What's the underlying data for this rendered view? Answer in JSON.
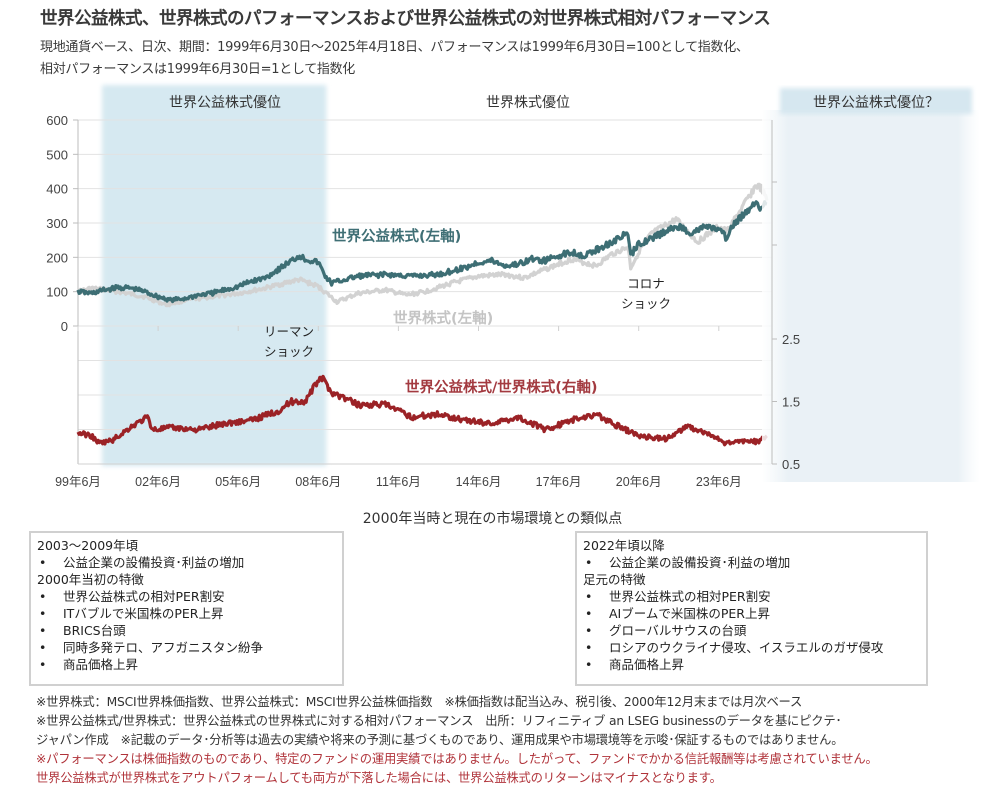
{
  "title": "世界公益株式、世界株式のパフォーマンスおよび世界公益株式の対世界株式相対パフォーマンス",
  "subtitle_line1": "現地通貨ベース、日次、期間：1999年6月30日～2025年4月18日、パフォーマンスは1999年6月30日=100として指数化、",
  "subtitle_line2": "相対パフォーマンスは1999年6月30日=1として指数化",
  "colors": {
    "utilities": "#3d6e74",
    "world": "#d2d2d2",
    "relative": "#9b2226",
    "shade": "#d6e9f1",
    "future_shade": "#e8f0f5",
    "label_utilities": "#3f6f75",
    "label_world": "#c4c4c4",
    "label_relative": "#a33a40"
  },
  "chart_data": {
    "type": "line",
    "title": "世界公益株式、世界株式のパフォーマンスおよび世界公益株式の対世界株式相対パフォーマンス",
    "xlabel": "",
    "x_ticks": [
      "99年6月",
      "02年6月",
      "05年6月",
      "08年6月",
      "11年6月",
      "14年6月",
      "17年6月",
      "20年6月",
      "23年6月"
    ],
    "x_tick_years": [
      1999.5,
      2002.5,
      2005.5,
      2008.5,
      2011.5,
      2014.5,
      2017.5,
      2020.5,
      2023.5
    ],
    "x_range": [
      1999.5,
      2025.3
    ],
    "left_axis": {
      "ticks": [
        0,
        100,
        200,
        300,
        400,
        500,
        600
      ],
      "range": [
        0,
        600
      ]
    },
    "right_axis": {
      "ticks": [
        0.5,
        1.5,
        2.5
      ],
      "range": [
        0.5,
        2.5
      ]
    },
    "grid": true,
    "regions": [
      {
        "label": "世界公益株式優位",
        "from": 2000.4,
        "to": 2008.8
      },
      {
        "label": "世界株式優位",
        "from": 2008.8,
        "to": 2025.3
      },
      {
        "label": "世界公益株式優位？",
        "from": 2025.3,
        "to": 2033.0
      }
    ],
    "annotations": [
      {
        "text": [
          "リーマン",
          "ショック"
        ],
        "x": 2008.2
      },
      {
        "text": [
          "コロナ",
          "ショック"
        ],
        "x": 2020.2
      }
    ],
    "series": [
      {
        "name": "世界公益株式(左軸)",
        "axis": "left",
        "x": [
          1999.5,
          2000.0,
          2000.5,
          2001.0,
          2001.5,
          2002.0,
          2002.5,
          2003.0,
          2003.5,
          2004.0,
          2004.5,
          2005.0,
          2005.5,
          2006.0,
          2006.5,
          2007.0,
          2007.5,
          2007.8,
          2008.0,
          2008.5,
          2008.8,
          2009.0,
          2009.5,
          2010.0,
          2011.0,
          2012.0,
          2013.0,
          2014.0,
          2014.5,
          2015.0,
          2015.5,
          2016.0,
          2016.5,
          2017.0,
          2017.5,
          2018.0,
          2018.5,
          2019.0,
          2019.5,
          2020.1,
          2020.2,
          2020.5,
          2021.0,
          2021.5,
          2022.0,
          2022.5,
          2023.0,
          2023.5,
          2023.8,
          2024.0,
          2024.5,
          2024.9,
          2025.0,
          2025.3
        ],
        "values": [
          100,
          95,
          105,
          112,
          110,
          100,
          85,
          75,
          80,
          90,
          95,
          105,
          115,
          130,
          140,
          165,
          190,
          205,
          195,
          185,
          140,
          125,
          135,
          145,
          150,
          145,
          150,
          170,
          185,
          190,
          175,
          180,
          195,
          190,
          205,
          215,
          205,
          225,
          245,
          270,
          205,
          240,
          255,
          275,
          290,
          270,
          290,
          280,
          255,
          290,
          330,
          365,
          345,
          355
        ]
      },
      {
        "name": "世界株式(左軸)",
        "axis": "left",
        "x": [
          1999.5,
          2000.0,
          2001.0,
          2002.0,
          2002.8,
          2003.5,
          2004.5,
          2005.5,
          2006.5,
          2007.5,
          2007.8,
          2008.5,
          2009.2,
          2010.0,
          2011.0,
          2011.8,
          2012.5,
          2013.5,
          2014.5,
          2015.5,
          2016.2,
          2017.0,
          2018.0,
          2018.9,
          2019.5,
          2020.1,
          2020.2,
          2020.6,
          2021.0,
          2021.9,
          2022.7,
          2023.5,
          2023.8,
          2024.5,
          2024.9,
          2025.1,
          2025.3
        ],
        "values": [
          100,
          110,
          100,
          85,
          62,
          75,
          85,
          95,
          110,
          130,
          135,
          115,
          70,
          95,
          105,
          90,
          100,
          125,
          145,
          150,
          140,
          165,
          195,
          175,
          210,
          230,
          170,
          230,
          270,
          310,
          245,
          290,
          275,
          360,
          410,
          400,
          365
        ]
      },
      {
        "name": "世界公益株式/世界株式(右軸)",
        "axis": "right",
        "x": [
          1999.5,
          2000.0,
          2000.3,
          2000.8,
          2001.5,
          2002.1,
          2002.3,
          2003.0,
          2004.0,
          2005.0,
          2006.0,
          2007.0,
          2007.5,
          2008.0,
          2008.6,
          2009.0,
          2010.0,
          2011.0,
          2012.0,
          2013.0,
          2014.0,
          2015.0,
          2016.0,
          2017.0,
          2018.0,
          2018.9,
          2019.5,
          2020.5,
          2021.5,
          2022.3,
          2023.0,
          2023.8,
          2024.5,
          2025.0,
          2025.3
        ],
        "values": [
          1.0,
          0.95,
          0.83,
          0.88,
          1.1,
          1.25,
          1.05,
          1.08,
          1.05,
          1.15,
          1.2,
          1.35,
          1.5,
          1.5,
          1.9,
          1.65,
          1.45,
          1.45,
          1.25,
          1.3,
          1.2,
          1.15,
          1.25,
          1.05,
          1.2,
          1.3,
          1.15,
          0.95,
          0.9,
          1.1,
          1.0,
          0.82,
          0.88,
          0.85,
          0.95
        ]
      }
    ]
  },
  "section_title": "2000年当時と現在の市場環境との類似点",
  "box_left": {
    "head1": "2003～2009年頃",
    "items1": [
      "公益企業の設備投資･利益の増加"
    ],
    "head2": "2000年当初の特徴",
    "items2": [
      "世界公益株式の相対PER割安",
      "ITバブルで米国株のPER上昇",
      "BRICS台頭",
      "同時多発テロ、アフガニスタン紛争",
      "商品価格上昇"
    ]
  },
  "box_right": {
    "head1": "2022年頃以降",
    "items1": [
      "公益企業の設備投資･利益の増加"
    ],
    "head2": "足元の特徴",
    "items2": [
      "世界公益株式の相対PER割安",
      "AIブームで米国株のPER上昇",
      "グローバルサウスの台頭",
      "ロシアのウクライナ侵攻、イスラエルのガザ侵攻",
      "商品価格上昇"
    ]
  },
  "notes": [
    "※世界株式：MSCI世界株価指数、世界公益株式：MSCI世界公益株価指数　※株価指数は配当込み、税引後、2000年12月末までは月次ベース",
    "※世界公益株式/世界株式：世界公益株式の世界株式に対する相対パフォーマンス　出所：リフィニティブ an LSEG businessのデータを基にピクテ･",
    "ジャパン作成　※記載のデータ･分析等は過去の実績や将来の予測に基づくものであり、運用成果や市場環境等を示唆･保証するものではありません。"
  ],
  "notes_red": [
    "※パフォーマンスは株価指数のものであり、特定のファンドの運用実績ではありません。したがって、ファンドでかかる信託報酬等は考慮されていません。",
    "世界公益株式が世界株式をアウトパフォームしても両方が下落した場合には、世界公益株式のリターンはマイナスとなります。"
  ]
}
